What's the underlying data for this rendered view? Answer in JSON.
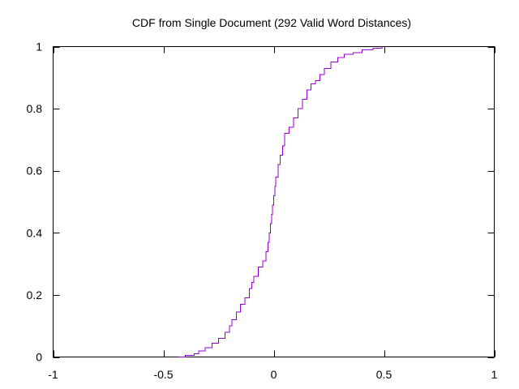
{
  "chart_data": {
    "type": "line",
    "title": "CDF from Single Document (292 Valid Word Distances)",
    "xlabel": "",
    "ylabel": "",
    "xlim": [
      -1,
      1
    ],
    "ylim": [
      0,
      1
    ],
    "x_ticks": [
      "-1",
      "-0.5",
      "0",
      "0.5",
      "1"
    ],
    "y_ticks": [
      "0",
      "0.2",
      "0.4",
      "0.6",
      "0.8",
      "1"
    ],
    "grid": false,
    "legend": "none",
    "line_color": "#9400d3",
    "series": [
      {
        "step": true,
        "x": [
          -0.43,
          -0.4,
          -0.36,
          -0.34,
          -0.31,
          -0.28,
          -0.25,
          -0.22,
          -0.2,
          -0.19,
          -0.17,
          -0.15,
          -0.13,
          -0.11,
          -0.1,
          -0.09,
          -0.07,
          -0.05,
          -0.035,
          -0.025,
          -0.02,
          -0.015,
          -0.01,
          -0.005,
          0.0,
          0.005,
          0.01,
          0.02,
          0.03,
          0.04,
          0.05,
          0.07,
          0.09,
          0.11,
          0.13,
          0.15,
          0.17,
          0.19,
          0.21,
          0.23,
          0.26,
          0.29,
          0.32,
          0.36,
          0.4,
          0.45,
          0.49
        ],
        "y": [
          0.0,
          0.005,
          0.01,
          0.02,
          0.03,
          0.045,
          0.06,
          0.08,
          0.1,
          0.12,
          0.145,
          0.17,
          0.19,
          0.22,
          0.24,
          0.26,
          0.29,
          0.31,
          0.34,
          0.37,
          0.4,
          0.43,
          0.46,
          0.49,
          0.52,
          0.55,
          0.58,
          0.62,
          0.65,
          0.68,
          0.72,
          0.74,
          0.77,
          0.8,
          0.83,
          0.86,
          0.88,
          0.89,
          0.91,
          0.93,
          0.95,
          0.965,
          0.975,
          0.98,
          0.99,
          0.995,
          1.0
        ]
      }
    ]
  }
}
